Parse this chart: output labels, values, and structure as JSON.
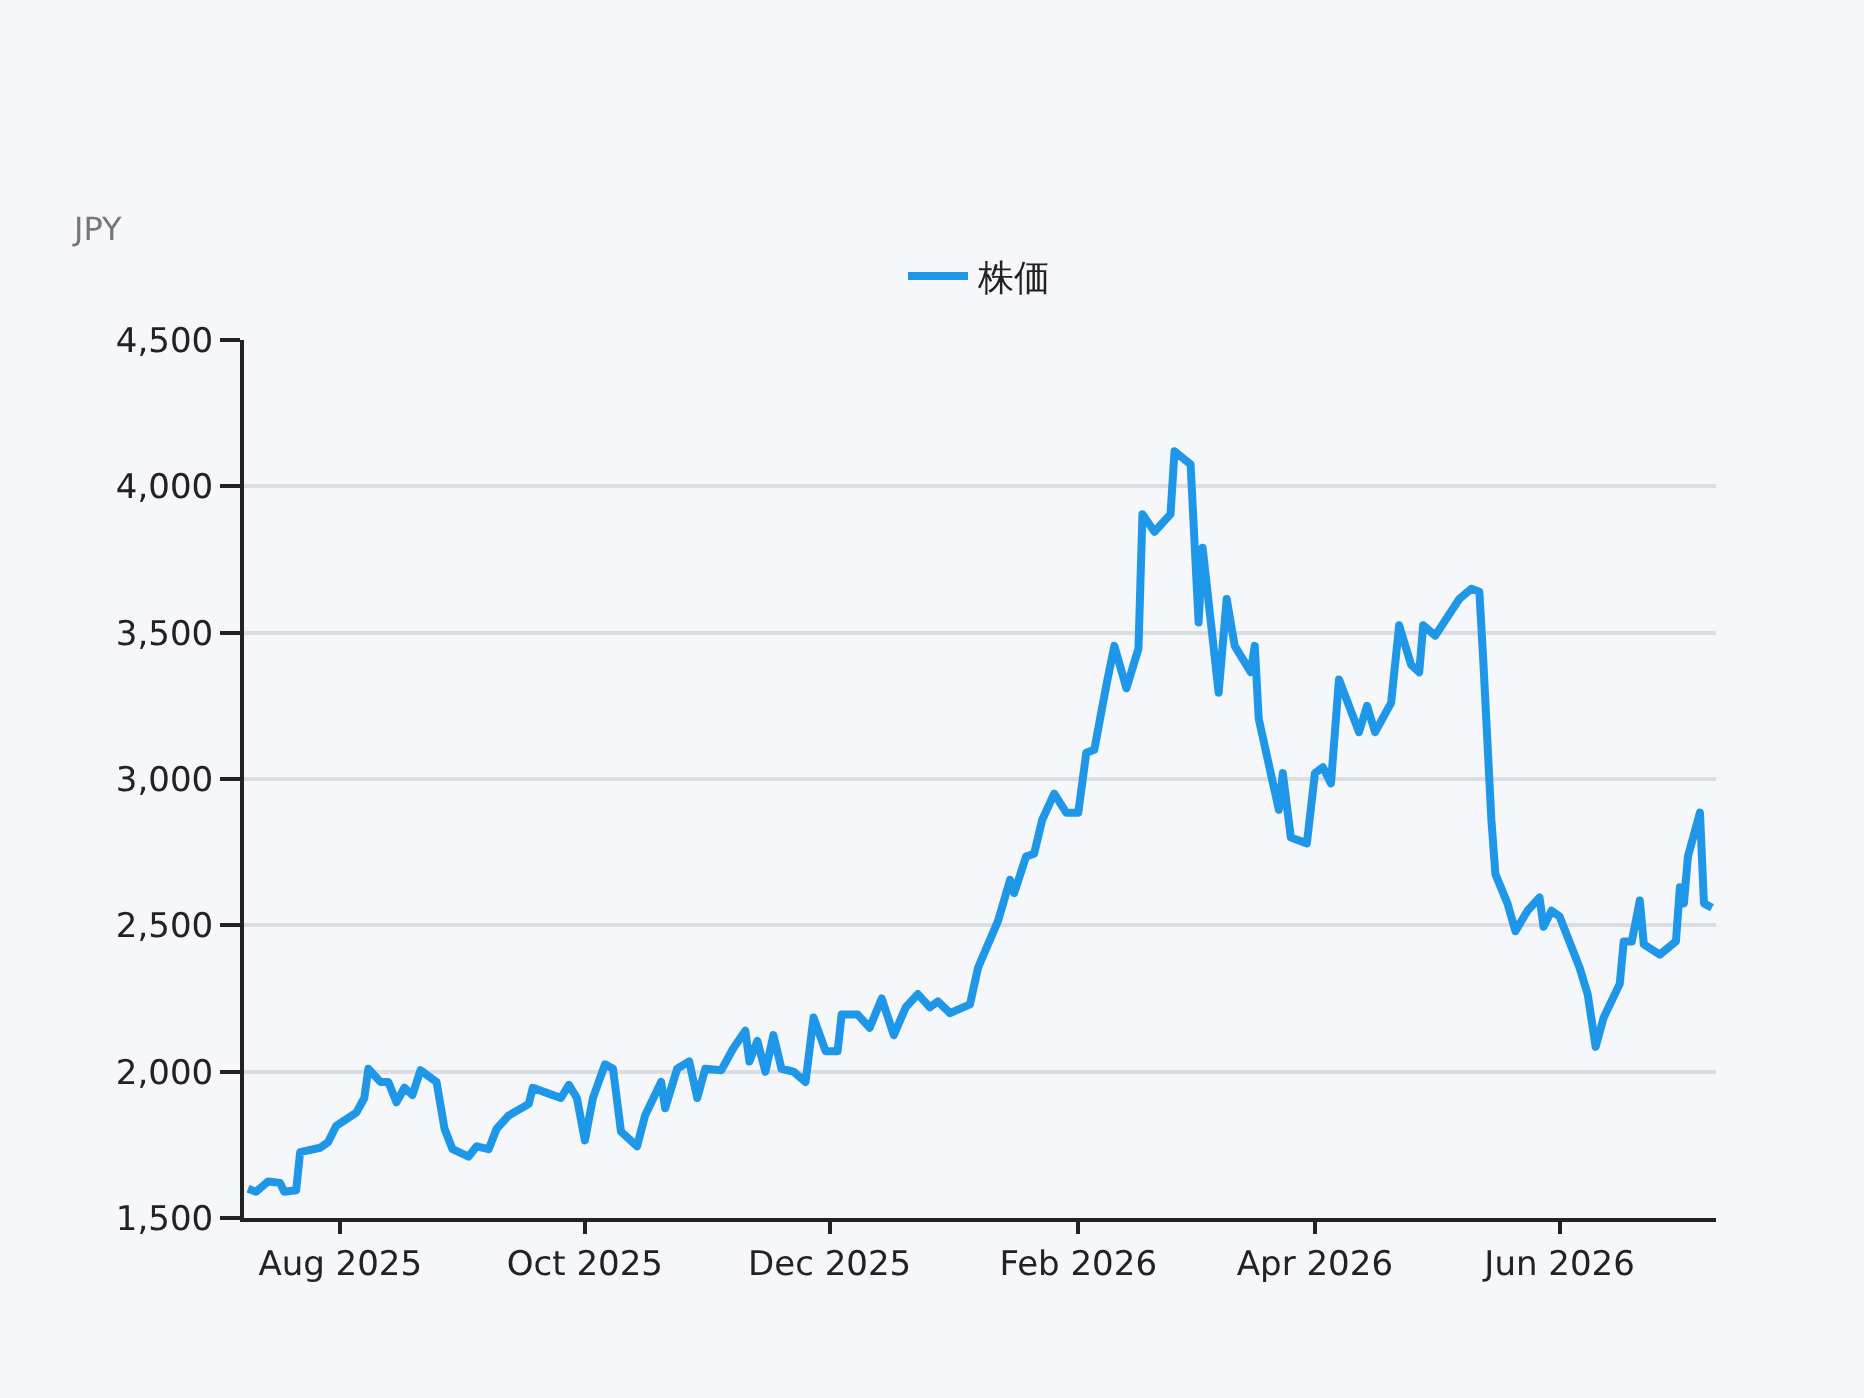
{
  "chart_data": {
    "type": "line",
    "ylabel": "JPY",
    "legend": "top",
    "grid": "y",
    "marker": "none",
    "line_style": "solid",
    "xlim": [
      "2025-07-08",
      "2026-07-10"
    ],
    "xticks": [
      {
        "value": "2025-08-01",
        "label": "Aug 2025"
      },
      {
        "value": "2025-10-01",
        "label": "Oct 2025"
      },
      {
        "value": "2025-12-01",
        "label": "Dec 2025"
      },
      {
        "value": "2026-02-01",
        "label": "Feb 2026"
      },
      {
        "value": "2026-04-01",
        "label": "Apr 2026"
      },
      {
        "value": "2026-06-01",
        "label": "Jun 2026"
      }
    ],
    "ylim": [
      1500,
      4500
    ],
    "yticks": [
      {
        "value": 1500,
        "label": "1,500"
      },
      {
        "value": 2000,
        "label": "2,000"
      },
      {
        "value": 2500,
        "label": "2,500"
      },
      {
        "value": 3000,
        "label": "3,000"
      },
      {
        "value": 3500,
        "label": "3,500"
      },
      {
        "value": 4000,
        "label": "4,000"
      },
      {
        "value": 4500,
        "label": "4,500"
      }
    ],
    "x": [
      "2025-07-09",
      "2025-07-11",
      "2025-07-14",
      "2025-07-17",
      "2025-07-18",
      "2025-07-21",
      "2025-07-22",
      "2025-07-27",
      "2025-07-29",
      "2025-07-31",
      "2025-08-05",
      "2025-08-07",
      "2025-08-08",
      "2025-08-11",
      "2025-08-13",
      "2025-08-15",
      "2025-08-17",
      "2025-08-19",
      "2025-08-21",
      "2025-08-25",
      "2025-08-27",
      "2025-08-29",
      "2025-09-02",
      "2025-09-04",
      "2025-09-07",
      "2025-09-09",
      "2025-09-12",
      "2025-09-17",
      "2025-09-18",
      "2025-09-22",
      "2025-09-25",
      "2025-09-27",
      "2025-09-29",
      "2025-10-01",
      "2025-10-03",
      "2025-10-06",
      "2025-10-08",
      "2025-10-10",
      "2025-10-14",
      "2025-10-16",
      "2025-10-20",
      "2025-10-21",
      "2025-10-24",
      "2025-10-27",
      "2025-10-29",
      "2025-10-31",
      "2025-11-04",
      "2025-11-07",
      "2025-11-10",
      "2025-11-11",
      "2025-11-13",
      "2025-11-15",
      "2025-11-17",
      "2025-11-19",
      "2025-11-22",
      "2025-11-25",
      "2025-11-27",
      "2025-11-30",
      "2025-12-03",
      "2025-12-04",
      "2025-12-08",
      "2025-12-11",
      "2025-12-14",
      "2025-12-17",
      "2025-12-20",
      "2025-12-23",
      "2025-12-26",
      "2025-12-28",
      "2025-12-31",
      "2026-01-05",
      "2026-01-07",
      "2026-01-12",
      "2026-01-15",
      "2026-01-16",
      "2026-01-19",
      "2026-01-21",
      "2026-01-23",
      "2026-01-26",
      "2026-01-29",
      "2026-02-01",
      "2026-02-03",
      "2026-02-05",
      "2026-02-08",
      "2026-02-10",
      "2026-02-13",
      "2026-02-16",
      "2026-02-17",
      "2026-02-20",
      "2026-02-24",
      "2026-02-25",
      "2026-03-01",
      "2026-03-03",
      "2026-03-04",
      "2026-03-08",
      "2026-03-10",
      "2026-03-12",
      "2026-03-16",
      "2026-03-17",
      "2026-03-18",
      "2026-03-23",
      "2026-03-24",
      "2026-03-26",
      "2026-03-30",
      "2026-04-01",
      "2026-04-03",
      "2026-04-05",
      "2026-04-07",
      "2026-04-12",
      "2026-04-14",
      "2026-04-16",
      "2026-04-20",
      "2026-04-22",
      "2026-04-25",
      "2026-04-27",
      "2026-04-28",
      "2026-05-01",
      "2026-05-07",
      "2026-05-10",
      "2026-05-12",
      "2026-05-13",
      "2026-05-15",
      "2026-05-16",
      "2026-05-19",
      "2026-05-21",
      "2026-05-24",
      "2026-05-27",
      "2026-05-28",
      "2026-05-30",
      "2026-06-01",
      "2026-06-03",
      "2026-06-06",
      "2026-06-08",
      "2026-06-10",
      "2026-06-12",
      "2026-06-16",
      "2026-06-17",
      "2026-06-19",
      "2026-06-21",
      "2026-06-22",
      "2026-06-26",
      "2026-06-30",
      "2026-07-01",
      "2026-07-02",
      "2026-07-03",
      "2026-07-06",
      "2026-07-07",
      "2026-07-09"
    ],
    "series": [
      {
        "name": "株価",
        "color": "#1f97e8",
        "values": [
          1600,
          1590,
          1625,
          1620,
          1590,
          1595,
          1725,
          1740,
          1760,
          1815,
          1860,
          1910,
          2010,
          1965,
          1965,
          1895,
          1945,
          1920,
          2005,
          1965,
          1805,
          1735,
          1710,
          1745,
          1735,
          1805,
          1850,
          1890,
          1945,
          1925,
          1910,
          1955,
          1910,
          1765,
          1910,
          2025,
          2010,
          1795,
          1745,
          1850,
          1965,
          1875,
          2010,
          2035,
          1910,
          2010,
          2005,
          2080,
          2140,
          2035,
          2105,
          2000,
          2125,
          2010,
          2000,
          1965,
          2185,
          2070,
          2070,
          2195,
          2195,
          2150,
          2250,
          2125,
          2220,
          2265,
          2220,
          2240,
          2200,
          2230,
          2355,
          2515,
          2655,
          2610,
          2735,
          2745,
          2860,
          2950,
          2885,
          2885,
          3090,
          3100,
          3320,
          3455,
          3310,
          3445,
          3905,
          3845,
          3905,
          4120,
          4075,
          3535,
          3790,
          3295,
          3615,
          3455,
          3365,
          3455,
          3205,
          2895,
          3020,
          2800,
          2780,
          3020,
          3040,
          2985,
          3340,
          3160,
          3250,
          3160,
          3260,
          3525,
          3390,
          3365,
          3525,
          3490,
          3615,
          3650,
          3640,
          3400,
          2860,
          2675,
          2575,
          2480,
          2550,
          2595,
          2495,
          2550,
          2530,
          2460,
          2355,
          2265,
          2085,
          2185,
          2300,
          2445,
          2445,
          2585,
          2435,
          2400,
          2445,
          2630,
          2575,
          2735,
          2885,
          2575,
          2560
        ]
      }
    ]
  }
}
